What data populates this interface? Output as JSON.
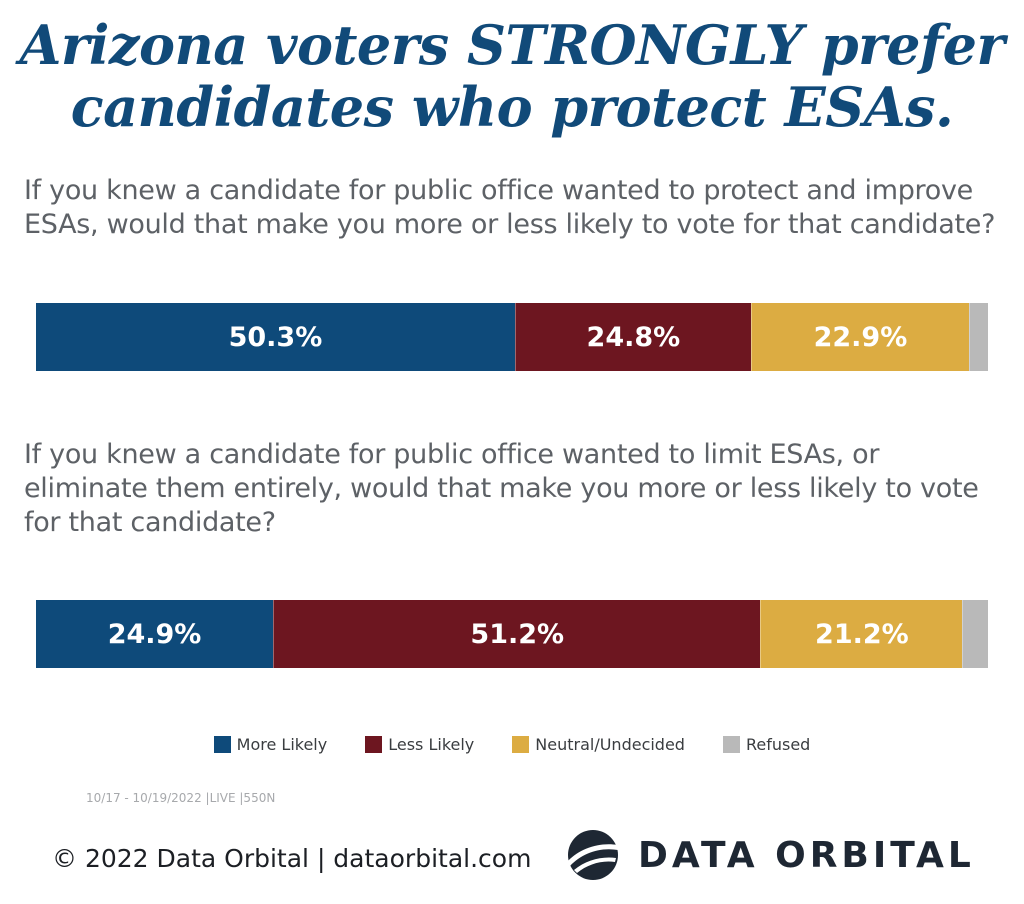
{
  "header": {
    "title_line1": "Arizona voters STRONGLY prefer",
    "title_line2": "candidates who protect ESAs."
  },
  "colors": {
    "title": "#114a79",
    "more_likely": "#0e4a7a",
    "less_likely": "#6d1620",
    "neutral": "#dcac42",
    "refused": "#b9b9b9"
  },
  "chart_data": [
    {
      "type": "bar",
      "orientation": "horizontal-stacked",
      "title": "If you knew a candidate for public office wanted to protect and improve ESAs, would that make you more or less likely to vote for that candidate?",
      "series": [
        {
          "name": "More Likely",
          "value": 50.3,
          "label": "50.3%"
        },
        {
          "name": "Less Likely",
          "value": 24.8,
          "label": "24.8%"
        },
        {
          "name": "Neutral/Undecided",
          "value": 22.9,
          "label": "22.9%"
        },
        {
          "name": "Refused",
          "value": 2.0,
          "label": ""
        }
      ]
    },
    {
      "type": "bar",
      "orientation": "horizontal-stacked",
      "title": "If you knew a candidate for public office wanted to limit ESAs, or eliminate them entirely, would that make you more or less likely to vote for that candidate?",
      "series": [
        {
          "name": "More Likely",
          "value": 24.9,
          "label": "24.9%"
        },
        {
          "name": "Less Likely",
          "value": 51.2,
          "label": "51.2%"
        },
        {
          "name": "Neutral/Undecided",
          "value": 21.2,
          "label": "21.2%"
        },
        {
          "name": "Refused",
          "value": 2.7,
          "label": ""
        }
      ]
    }
  ],
  "legend": [
    {
      "label": "More Likely",
      "icon": "square-swatch"
    },
    {
      "label": "Less Likely",
      "icon": "square-swatch"
    },
    {
      "label": "Neutral/Undecided",
      "icon": "square-swatch"
    },
    {
      "label": "Refused",
      "icon": "square-swatch"
    }
  ],
  "footer": {
    "field_dates": "10/17 - 10/19/2022 |LIVE |550N",
    "copyright": "© 2022 Data Orbital | dataorbital.com",
    "logo_text": "DATA ORBITAL",
    "logo_icon": "globe-orbit-logo"
  }
}
